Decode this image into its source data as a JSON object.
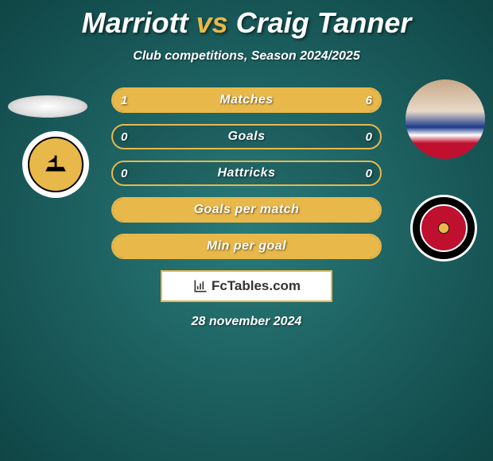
{
  "title": {
    "player1": "Marriott",
    "vs": "vs",
    "player2": "Craig Tanner",
    "player1_color": "#ffffff",
    "vs_color": "#e9b84a",
    "player2_color": "#ffffff",
    "fontsize": 36
  },
  "subtitle": "Club competitions, Season 2024/2025",
  "accent_color": "#e9b84a",
  "background": {
    "center": "#2a7a7a",
    "edge": "#0f4545"
  },
  "stats": [
    {
      "label": "Matches",
      "left_val": "1",
      "right_val": "6",
      "left_pct": 14,
      "right_pct": 86
    },
    {
      "label": "Goals",
      "left_val": "0",
      "right_val": "0",
      "left_pct": 0,
      "right_pct": 0
    },
    {
      "label": "Hattricks",
      "left_val": "0",
      "right_val": "0",
      "left_pct": 0,
      "right_pct": 0
    },
    {
      "label": "Goals per match",
      "left_val": "",
      "right_val": "",
      "left_pct": 100,
      "right_pct": 0
    },
    {
      "label": "Min per goal",
      "left_val": "",
      "right_val": "",
      "left_pct": 100,
      "right_pct": 0
    }
  ],
  "bar_style": {
    "height": 32,
    "border_radius": 16,
    "border_color": "#e9b84a",
    "fill_color": "#e9b84a",
    "label_fontsize": 16,
    "label_color": "#ffffff"
  },
  "branding": "FcTables.com",
  "date": "28 november 2024",
  "left_player": {
    "avatar_shape": "ellipse-placeholder",
    "club_name": "Boston United",
    "club_badge_bg": "#e9b84a",
    "club_badge_ring": "#ffffff"
  },
  "right_player": {
    "avatar_shape": "torso-jersey",
    "jersey_colors": [
      "#1a3a8a",
      "#ffffff",
      "#c01030"
    ],
    "club_name": "Ebbsfleet United",
    "club_badge_bg": "#c01030",
    "club_badge_ring": "#000000"
  }
}
